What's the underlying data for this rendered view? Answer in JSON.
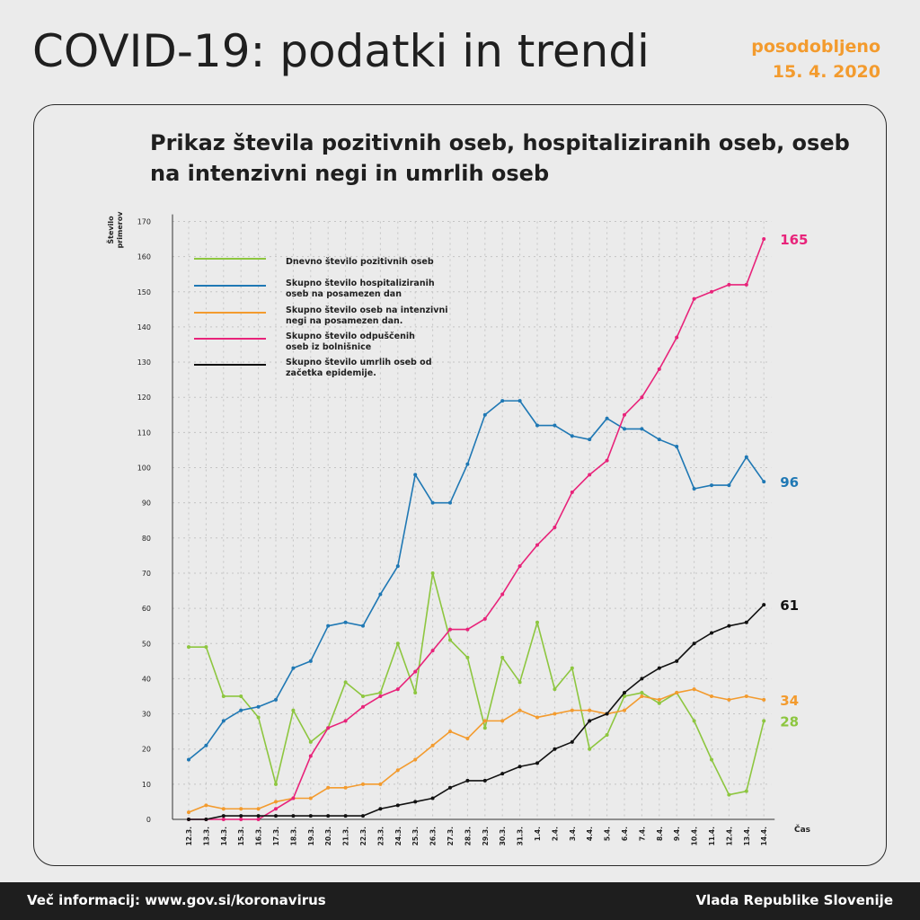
{
  "header": {
    "title": "COVID-19: podatki in trendi",
    "updated_label": "posodobljeno",
    "updated_date": "15. 4. 2020"
  },
  "footer": {
    "info": "Več informacij: www.gov.si/koronavirus",
    "org": "Vlada Republike Slovenije"
  },
  "colors": {
    "green": "#8dc63f",
    "blue": "#1f78b4",
    "orange": "#f39b2e",
    "pink": "#e8237a",
    "black": "#111111"
  },
  "chart_data": {
    "type": "line",
    "title": "Prikaz števila pozitivnih oseb, hospitaliziranih oseb, oseb na intenzivni negi in umrlih oseb",
    "ylabel": "Število primerov",
    "xlabel": "Čas",
    "ylim": [
      0,
      170
    ],
    "yticks": [
      0,
      10,
      20,
      30,
      40,
      50,
      60,
      70,
      80,
      90,
      100,
      110,
      120,
      130,
      140,
      150,
      160,
      170
    ],
    "grid": true,
    "legend_position": "top-left",
    "categories": [
      "12.3.",
      "13.3.",
      "14.3.",
      "15.3.",
      "16.3.",
      "17.3.",
      "18.3.",
      "19.3.",
      "20.3.",
      "21.3.",
      "22.3.",
      "23.3.",
      "24.3.",
      "25.3.",
      "26.3.",
      "27.3.",
      "28.3.",
      "29.3.",
      "30.3.",
      "31.3.",
      "1.4.",
      "2.4.",
      "3.4.",
      "4.4.",
      "5.4.",
      "6.4.",
      "7.4.",
      "8.4.",
      "9.4.",
      "10.4.",
      "11.4.",
      "12.4.",
      "13.4.",
      "14.4."
    ],
    "series": [
      {
        "name": "Dnevno število pozitivnih oseb",
        "color": "#8dc63f",
        "end_label": "28",
        "values": [
          49,
          49,
          35,
          35,
          29,
          10,
          31,
          22,
          26,
          39,
          35,
          36,
          50,
          36,
          70,
          51,
          46,
          26,
          46,
          39,
          56,
          37,
          43,
          20,
          24,
          35,
          36,
          33,
          36,
          28,
          17,
          7,
          8,
          28
        ]
      },
      {
        "name": "Skupno število hospitaliziranih oseb na posamezen dan",
        "color": "#1f78b4",
        "end_label": "96",
        "values": [
          17,
          21,
          28,
          31,
          32,
          34,
          43,
          45,
          55,
          56,
          55,
          64,
          72,
          98,
          90,
          90,
          101,
          115,
          119,
          119,
          112,
          112,
          109,
          108,
          114,
          111,
          111,
          108,
          106,
          94,
          95,
          95,
          103,
          96
        ]
      },
      {
        "name": "Skupno število oseb na intenzivni negi na posamezen dan.",
        "color": "#f39b2e",
        "end_label": "34",
        "values": [
          2,
          4,
          3,
          3,
          3,
          5,
          6,
          6,
          9,
          9,
          10,
          10,
          14,
          17,
          21,
          25,
          23,
          28,
          28,
          31,
          29,
          30,
          31,
          31,
          30,
          31,
          35,
          34,
          36,
          37,
          35,
          34,
          35,
          34
        ]
      },
      {
        "name": "Skupno število odpuščenih oseb iz bolnišnice",
        "color": "#e8237a",
        "end_label": "165",
        "values": [
          0,
          0,
          0,
          0,
          0,
          3,
          6,
          18,
          26,
          28,
          32,
          35,
          37,
          42,
          48,
          54,
          54,
          57,
          64,
          72,
          78,
          83,
          93,
          98,
          102,
          115,
          120,
          128,
          137,
          148,
          150,
          152,
          152,
          165
        ]
      },
      {
        "name": "Skupno število umrlih oseb od začetka epidemije.",
        "color": "#111111",
        "end_label": "61",
        "values": [
          0,
          0,
          1,
          1,
          1,
          1,
          1,
          1,
          1,
          1,
          1,
          3,
          4,
          5,
          6,
          9,
          11,
          11,
          13,
          15,
          16,
          20,
          22,
          28,
          30,
          36,
          40,
          43,
          45,
          50,
          53,
          55,
          56,
          61
        ]
      }
    ],
    "legend": [
      [
        "Dnevno število pozitivnih oseb"
      ],
      [
        "Skupno število hospitaliziranih",
        "oseb na posamezen dan"
      ],
      [
        "Skupno število oseb na intenzivni",
        "negi na posamezen dan."
      ],
      [
        "Skupno število odpuščenih",
        "oseb iz bolnišnice"
      ],
      [
        "Skupno število umrlih oseb od",
        "začetka epidemije."
      ]
    ],
    "title_lines": [
      "Prikaz števila pozitivnih oseb, hospitaliziranih oseb, oseb",
      "na intenzivni negi in umrlih oseb"
    ],
    "ylabel_lines": [
      "Število",
      "primerov"
    ]
  }
}
